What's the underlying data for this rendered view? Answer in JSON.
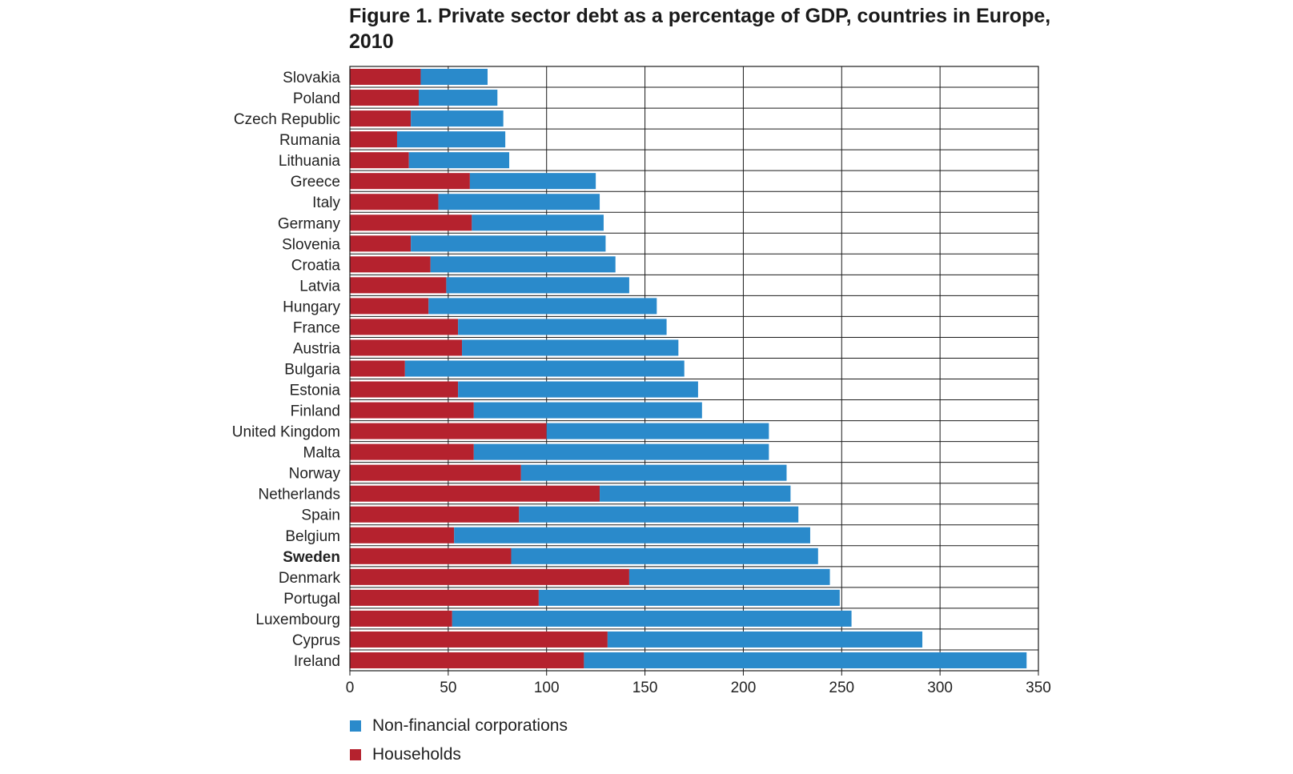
{
  "title": "Figure 1. Private sector debt as a percentage of GDP, countries in Europe, 2010",
  "colors": {
    "households": "#b5222e",
    "nfc": "#2a8acb"
  },
  "chart_data": {
    "type": "bar",
    "orientation": "horizontal",
    "stacked": true,
    "title": "Figure 1. Private sector debt as a percentage of GDP, countries in Europe, 2010",
    "xlabel": "",
    "ylabel": "",
    "xlim": [
      0,
      350
    ],
    "xticks": [
      0,
      50,
      100,
      150,
      200,
      250,
      300,
      350
    ],
    "grid": true,
    "legend_position": "bottom-left",
    "highlighted_category": "Sweden",
    "categories": [
      "Slovakia",
      "Poland",
      "Czech Republic",
      "Rumania",
      "Lithuania",
      "Greece",
      "Italy",
      "Germany",
      "Slovenia",
      "Croatia",
      "Latvia",
      "Hungary",
      "France",
      "Austria",
      "Bulgaria",
      "Estonia",
      "Finland",
      "United Kingdom",
      "Malta",
      "Norway",
      "Netherlands",
      "Spain",
      "Belgium",
      "Sweden",
      "Denmark",
      "Portugal",
      "Luxembourg",
      "Cyprus",
      "Ireland"
    ],
    "series": [
      {
        "name": "Households",
        "color": "#b5222e",
        "values": [
          36,
          35,
          31,
          24,
          30,
          61,
          45,
          62,
          31,
          41,
          49,
          40,
          55,
          57,
          28,
          55,
          63,
          100,
          63,
          87,
          127,
          86,
          53,
          82,
          142,
          96,
          52,
          131,
          119
        ]
      },
      {
        "name": "Non-financial corporations",
        "color": "#2a8acb",
        "values": [
          34,
          40,
          47,
          55,
          51,
          64,
          82,
          67,
          99,
          94,
          93,
          116,
          106,
          110,
          142,
          122,
          116,
          113,
          150,
          135,
          97,
          142,
          181,
          156,
          102,
          153,
          203,
          160,
          225
        ]
      }
    ]
  },
  "legend": [
    {
      "label": "Non-financial corporations",
      "color": "#2a8acb"
    },
    {
      "label": "Households",
      "color": "#b5222e"
    }
  ]
}
